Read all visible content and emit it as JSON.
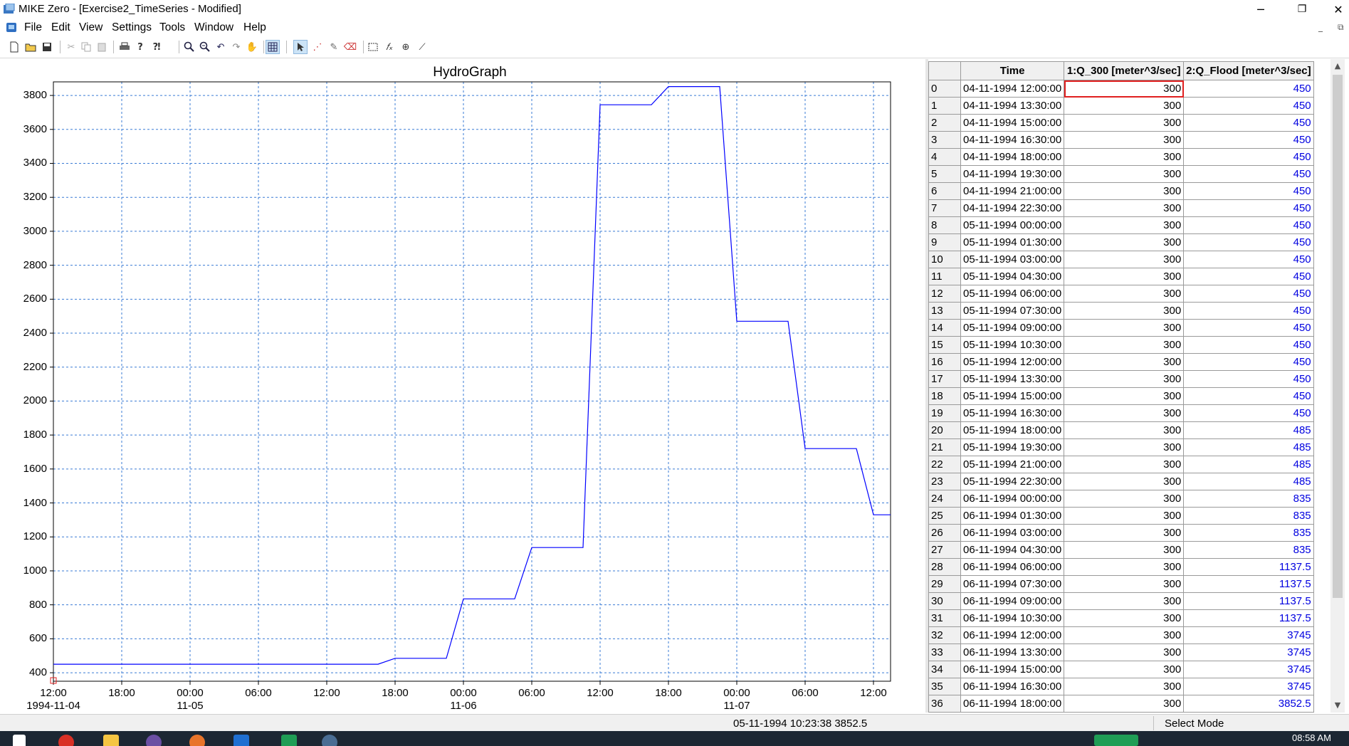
{
  "window": {
    "title": "MIKE Zero - [Exercise2_TimeSeries - Modified]",
    "minimize": "─",
    "restore": "❐",
    "close": "✕"
  },
  "menu": [
    "File",
    "Edit",
    "View",
    "Settings",
    "Tools",
    "Window",
    "Help"
  ],
  "mdi_controls": {
    "minimize": "_",
    "restore": "⧉"
  },
  "toolbar_icons": [
    "new-file-icon",
    "open-folder-icon",
    "save-icon",
    "cut-icon",
    "copy-icon",
    "paste-icon",
    "print-icon",
    "help-icon",
    "context-help-icon",
    "zoom-in-icon",
    "zoom-out-icon",
    "undo-zoom-icon",
    "redo-zoom-icon",
    "pan-hand-icon",
    "grid-icon",
    "select-arrow-icon",
    "edit-points-icon",
    "pencil-icon",
    "eraser-icon",
    "rectangle-select-icon",
    "function-icon",
    "marker-icon",
    "line-tool-icon"
  ],
  "chart_data": {
    "type": "line",
    "title": "HydroGraph",
    "ylim": [
      350,
      3880
    ],
    "yticks": [
      400,
      600,
      800,
      1000,
      1200,
      1400,
      1600,
      1800,
      2000,
      2200,
      2400,
      2600,
      2800,
      3000,
      3200,
      3400,
      3600,
      3800
    ],
    "xticks": [
      {
        "hours": 0,
        "time": "12:00",
        "date": "1994-11-04"
      },
      {
        "hours": 6,
        "time": "18:00",
        "date": ""
      },
      {
        "hours": 12,
        "time": "00:00",
        "date": "11-05"
      },
      {
        "hours": 18,
        "time": "06:00",
        "date": ""
      },
      {
        "hours": 24,
        "time": "12:00",
        "date": ""
      },
      {
        "hours": 30,
        "time": "18:00",
        "date": ""
      },
      {
        "hours": 36,
        "time": "00:00",
        "date": "11-06"
      },
      {
        "hours": 42,
        "time": "06:00",
        "date": ""
      },
      {
        "hours": 48,
        "time": "12:00",
        "date": ""
      },
      {
        "hours": 54,
        "time": "18:00",
        "date": ""
      },
      {
        "hours": 60,
        "time": "00:00",
        "date": "11-07"
      },
      {
        "hours": 66,
        "time": "06:00",
        "date": ""
      },
      {
        "hours": 72,
        "time": "12:00",
        "date": ""
      }
    ],
    "xlim_hours": [
      0,
      73.5
    ],
    "grid": true,
    "series": [
      {
        "name": "2:Q_Flood [meter^3/sec]",
        "color": "#0000ff",
        "points": [
          [
            0,
            450
          ],
          [
            28.5,
            450
          ],
          [
            30,
            485
          ],
          [
            34.5,
            485
          ],
          [
            36,
            835
          ],
          [
            40.5,
            835
          ],
          [
            42,
            1137.5
          ],
          [
            46.5,
            1137.5
          ],
          [
            48,
            3745
          ],
          [
            52.5,
            3745
          ],
          [
            54,
            3852.5
          ],
          [
            58.5,
            3852.5
          ],
          [
            60,
            2470
          ],
          [
            64.5,
            2470
          ],
          [
            66,
            1720
          ],
          [
            70.5,
            1720
          ],
          [
            72,
            1330
          ],
          [
            73.5,
            1330
          ]
        ]
      }
    ]
  },
  "table": {
    "columns": [
      "",
      "Time",
      "1:Q_300 [meter^3/sec]",
      "2:Q_Flood [meter^3/sec]"
    ],
    "rows": [
      [
        "0",
        "04-11-1994 12:00:00",
        "300",
        "450"
      ],
      [
        "1",
        "04-11-1994 13:30:00",
        "300",
        "450"
      ],
      [
        "2",
        "04-11-1994 15:00:00",
        "300",
        "450"
      ],
      [
        "3",
        "04-11-1994 16:30:00",
        "300",
        "450"
      ],
      [
        "4",
        "04-11-1994 18:00:00",
        "300",
        "450"
      ],
      [
        "5",
        "04-11-1994 19:30:00",
        "300",
        "450"
      ],
      [
        "6",
        "04-11-1994 21:00:00",
        "300",
        "450"
      ],
      [
        "7",
        "04-11-1994 22:30:00",
        "300",
        "450"
      ],
      [
        "8",
        "05-11-1994 00:00:00",
        "300",
        "450"
      ],
      [
        "9",
        "05-11-1994 01:30:00",
        "300",
        "450"
      ],
      [
        "10",
        "05-11-1994 03:00:00",
        "300",
        "450"
      ],
      [
        "11",
        "05-11-1994 04:30:00",
        "300",
        "450"
      ],
      [
        "12",
        "05-11-1994 06:00:00",
        "300",
        "450"
      ],
      [
        "13",
        "05-11-1994 07:30:00",
        "300",
        "450"
      ],
      [
        "14",
        "05-11-1994 09:00:00",
        "300",
        "450"
      ],
      [
        "15",
        "05-11-1994 10:30:00",
        "300",
        "450"
      ],
      [
        "16",
        "05-11-1994 12:00:00",
        "300",
        "450"
      ],
      [
        "17",
        "05-11-1994 13:30:00",
        "300",
        "450"
      ],
      [
        "18",
        "05-11-1994 15:00:00",
        "300",
        "450"
      ],
      [
        "19",
        "05-11-1994 16:30:00",
        "300",
        "450"
      ],
      [
        "20",
        "05-11-1994 18:00:00",
        "300",
        "485"
      ],
      [
        "21",
        "05-11-1994 19:30:00",
        "300",
        "485"
      ],
      [
        "22",
        "05-11-1994 21:00:00",
        "300",
        "485"
      ],
      [
        "23",
        "05-11-1994 22:30:00",
        "300",
        "485"
      ],
      [
        "24",
        "06-11-1994 00:00:00",
        "300",
        "835"
      ],
      [
        "25",
        "06-11-1994 01:30:00",
        "300",
        "835"
      ],
      [
        "26",
        "06-11-1994 03:00:00",
        "300",
        "835"
      ],
      [
        "27",
        "06-11-1994 04:30:00",
        "300",
        "835"
      ],
      [
        "28",
        "06-11-1994 06:00:00",
        "300",
        "1137.5"
      ],
      [
        "29",
        "06-11-1994 07:30:00",
        "300",
        "1137.5"
      ],
      [
        "30",
        "06-11-1994 09:00:00",
        "300",
        "1137.5"
      ],
      [
        "31",
        "06-11-1994 10:30:00",
        "300",
        "1137.5"
      ],
      [
        "32",
        "06-11-1994 12:00:00",
        "300",
        "3745"
      ],
      [
        "33",
        "06-11-1994 13:30:00",
        "300",
        "3745"
      ],
      [
        "34",
        "06-11-1994 15:00:00",
        "300",
        "3745"
      ],
      [
        "35",
        "06-11-1994 16:30:00",
        "300",
        "3745"
      ],
      [
        "36",
        "06-11-1994 18:00:00",
        "300",
        "3852.5"
      ]
    ]
  },
  "status": {
    "cursor_readout": "05-11-1994 10:23:38 3852.5",
    "mode": "Select Mode"
  },
  "taskbar": {
    "clock": "08:58 AM"
  }
}
